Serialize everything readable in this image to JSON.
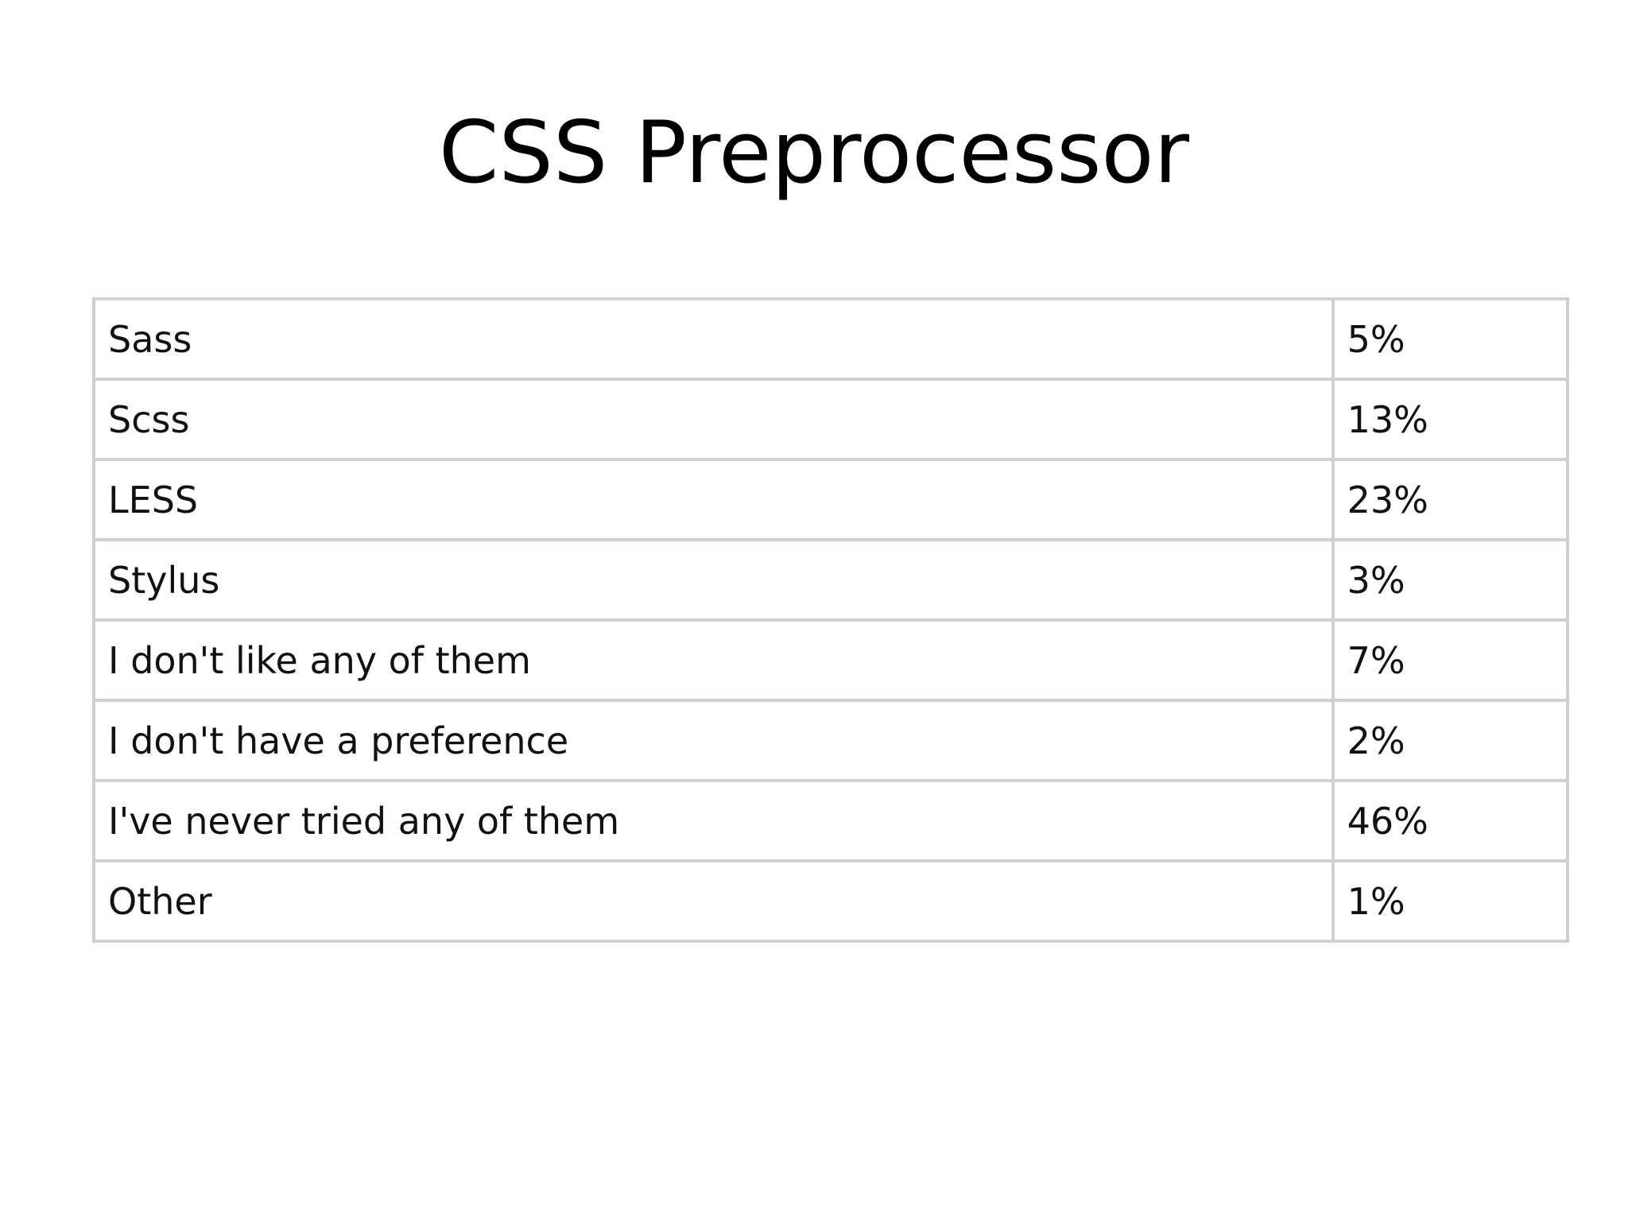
{
  "title": "CSS Preprocessor",
  "table": {
    "rows": [
      {
        "label": "Sass",
        "value": "5%"
      },
      {
        "label": "Scss",
        "value": "13%"
      },
      {
        "label": "LESS",
        "value": "23%"
      },
      {
        "label": "Stylus",
        "value": "3%"
      },
      {
        "label": "I don't like any of them",
        "value": "7%"
      },
      {
        "label": "I don't have a preference",
        "value": "2%"
      },
      {
        "label": "I've never tried any of them",
        "value": "46%"
      },
      {
        "label": "Other",
        "value": "1%"
      }
    ]
  },
  "colors": {
    "background": "#ffffff",
    "border": "#cfcfcf",
    "text": "#111111"
  }
}
